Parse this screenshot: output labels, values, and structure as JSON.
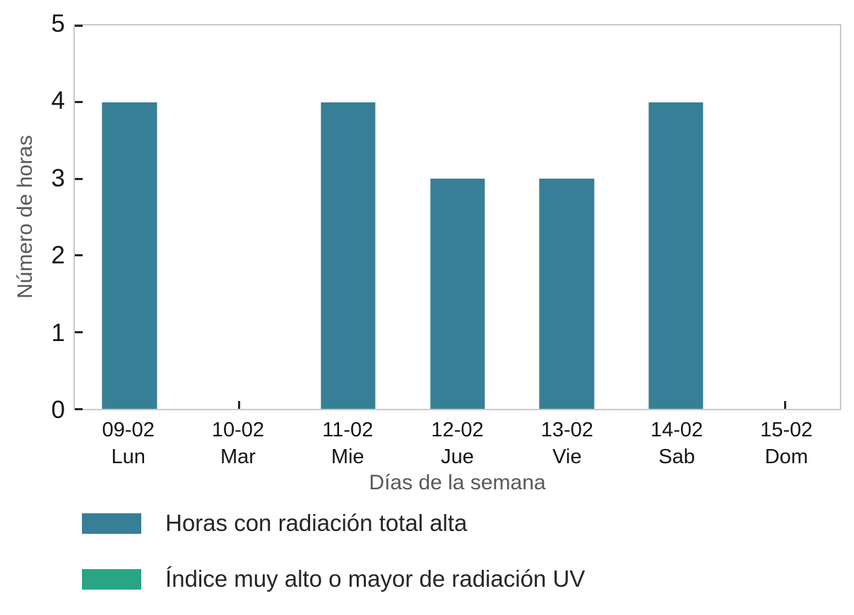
{
  "chart_data": {
    "type": "bar",
    "title": "",
    "xlabel": "Días de la semana",
    "ylabel": "Número de horas",
    "ylim": [
      0,
      5
    ],
    "yticks": [
      0,
      1,
      2,
      3,
      4,
      5
    ],
    "categories": [
      {
        "date": "09-02",
        "day": "Lun"
      },
      {
        "date": "10-02",
        "day": "Mar"
      },
      {
        "date": "11-02",
        "day": "Mie"
      },
      {
        "date": "12-02",
        "day": "Jue"
      },
      {
        "date": "13-02",
        "day": "Vie"
      },
      {
        "date": "14-02",
        "day": "Sab"
      },
      {
        "date": "15-02",
        "day": "Dom"
      }
    ],
    "series": [
      {
        "name": "Horas con radiación total alta",
        "color": "#377f96",
        "values": [
          4,
          0,
          4,
          3,
          3,
          4,
          0
        ]
      },
      {
        "name": "Índice muy alto o mayor de radiación UV",
        "color": "#2aa487",
        "values": [
          0,
          0,
          0,
          0,
          0,
          0,
          0
        ]
      }
    ],
    "bar_width_fraction": 0.5,
    "grid": false,
    "legend_position": "bottom-left"
  },
  "colors": {
    "background": "#ffffff",
    "plot_border": "#c9c9c9",
    "tick_mark": "#262626",
    "tick_label": "#151515",
    "axis_label": "#595959",
    "legend_text": "#262626"
  }
}
